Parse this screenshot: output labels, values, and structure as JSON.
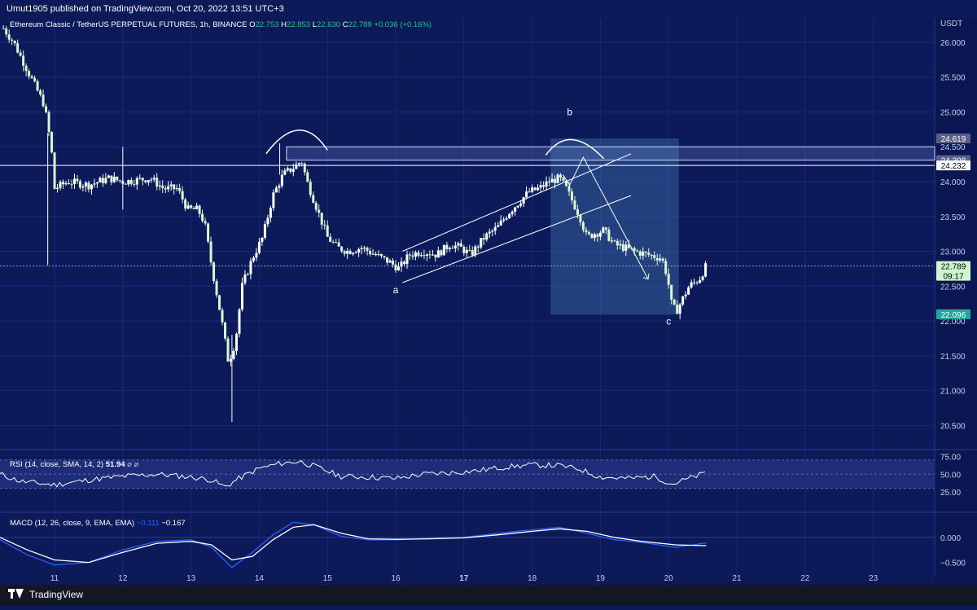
{
  "header": {
    "published": "Umut1905 published on TradingView.com, Oct 20, 2022 13:51 UTC+3",
    "symbol_line": "Ethereum Classic / TetherUS PERPETUAL FUTURES, 1h, BINANCE",
    "ohlc": {
      "o_label": "O",
      "o": "22.753",
      "h_label": "H",
      "h": "22.853",
      "l_label": "L",
      "l": "22.630",
      "c_label": "C",
      "c": "22.789",
      "change": "+0.036 (+0.16%)"
    }
  },
  "colors": {
    "background": "#0c1a5a",
    "candle_up": "#ffffff",
    "candle_down": "#d9f7d0",
    "drawing": "#ffffff",
    "current_price_badge": "#ccf5d0",
    "low_badge": "#26a69a",
    "rsi_band": "#1e2c7a",
    "macd_line": "#2962ff",
    "signal_line": "#ffffff"
  },
  "chart_data": [
    {
      "type": "candlestick",
      "title": "Ethereum Classic / TetherUS PERPETUAL FUTURES, 1h, BINANCE",
      "currency_label": "USDT",
      "x_ticks": [
        "11",
        "12",
        "13",
        "14",
        "15",
        "16",
        "17",
        "18",
        "19",
        "20",
        "21",
        "22",
        "23"
      ],
      "x_day_range": [
        10.2,
        23.9
      ],
      "ylim": [
        20.2,
        26.35
      ],
      "y_ticks": [
        "26.000",
        "25.500",
        "25.000",
        "24.500",
        "24.000",
        "23.500",
        "23.000",
        "22.500",
        "22.000",
        "21.500",
        "21.000",
        "20.500"
      ],
      "price_badges": [
        {
          "label": "24.619",
          "value": 24.619,
          "style": "grey"
        },
        {
          "label": "24.308",
          "value": 24.308,
          "style": "grey"
        },
        {
          "label": "24.232",
          "value": 24.232,
          "style": "white"
        },
        {
          "label": "22.789",
          "value": 22.789,
          "style": "current",
          "countdown": "09:17"
        },
        {
          "label": "22.096",
          "value": 22.096,
          "style": "low"
        }
      ],
      "wave_labels": [
        {
          "text": "a",
          "day": 16.0,
          "price": 22.4
        },
        {
          "text": "b",
          "day": 18.55,
          "price": 24.95
        },
        {
          "text": "c",
          "day": 20.0,
          "price": 21.95
        }
      ],
      "trend_points": [
        [
          10.25,
          26.2
        ],
        [
          10.4,
          26.0
        ],
        [
          10.55,
          25.7
        ],
        [
          10.7,
          25.4
        ],
        [
          10.85,
          25.1
        ],
        [
          10.95,
          24.5
        ],
        [
          11.0,
          23.9
        ],
        [
          11.2,
          24.0
        ],
        [
          11.5,
          23.95
        ],
        [
          11.8,
          24.05
        ],
        [
          12.0,
          24.0
        ],
        [
          12.2,
          24.02
        ],
        [
          12.4,
          24.05
        ],
        [
          12.6,
          23.9
        ],
        [
          12.8,
          23.9
        ],
        [
          12.95,
          23.6
        ],
        [
          13.1,
          23.6
        ],
        [
          13.2,
          23.4
        ],
        [
          13.3,
          22.8
        ],
        [
          13.45,
          22.0
        ],
        [
          13.55,
          21.4
        ],
        [
          13.65,
          21.7
        ],
        [
          13.75,
          22.5
        ],
        [
          13.9,
          22.9
        ],
        [
          14.05,
          23.2
        ],
        [
          14.2,
          23.8
        ],
        [
          14.35,
          24.1
        ],
        [
          14.5,
          24.2
        ],
        [
          14.62,
          24.3
        ],
        [
          14.7,
          24.0
        ],
        [
          14.85,
          23.6
        ],
        [
          15.0,
          23.2
        ],
        [
          15.15,
          23.05
        ],
        [
          15.3,
          23.0
        ],
        [
          15.5,
          23.05
        ],
        [
          15.7,
          22.95
        ],
        [
          15.9,
          22.85
        ],
        [
          16.05,
          22.75
        ],
        [
          16.2,
          22.95
        ],
        [
          16.4,
          23.0
        ],
        [
          16.6,
          22.95
        ],
        [
          16.8,
          23.1
        ],
        [
          16.95,
          23.05
        ],
        [
          17.1,
          22.95
        ],
        [
          17.3,
          23.2
        ],
        [
          17.5,
          23.35
        ],
        [
          17.65,
          23.55
        ],
        [
          17.8,
          23.7
        ],
        [
          17.95,
          23.85
        ],
        [
          18.1,
          23.9
        ],
        [
          18.25,
          24.0
        ],
        [
          18.4,
          24.05
        ],
        [
          18.5,
          23.9
        ],
        [
          18.6,
          23.7
        ],
        [
          18.7,
          23.5
        ],
        [
          18.8,
          23.2
        ],
        [
          18.9,
          23.25
        ],
        [
          19.05,
          23.3
        ],
        [
          19.2,
          23.1
        ],
        [
          19.35,
          23.05
        ],
        [
          19.5,
          23.0
        ],
        [
          19.7,
          22.95
        ],
        [
          19.9,
          22.9
        ],
        [
          19.98,
          22.65
        ],
        [
          20.05,
          22.2
        ],
        [
          20.12,
          22.15
        ],
        [
          20.3,
          22.5
        ],
        [
          20.45,
          22.6
        ],
        [
          20.55,
          22.789
        ]
      ]
    },
    {
      "type": "line",
      "title": "RSI",
      "legend": "RSI (14, close, SMA, 14, 2)",
      "value_label": "51.94",
      "ylim": [
        0,
        80
      ],
      "y_ticks": [
        "75.00",
        "50.00",
        "25.00"
      ],
      "band": [
        30,
        70
      ],
      "values": [
        [
          10.2,
          50
        ],
        [
          10.5,
          40
        ],
        [
          11.0,
          35
        ],
        [
          11.5,
          42
        ],
        [
          12.0,
          47
        ],
        [
          12.5,
          50
        ],
        [
          13.0,
          46
        ],
        [
          13.3,
          42
        ],
        [
          13.5,
          32
        ],
        [
          13.7,
          44
        ],
        [
          14.0,
          58
        ],
        [
          14.3,
          65
        ],
        [
          14.6,
          68
        ],
        [
          14.9,
          58
        ],
        [
          15.2,
          47
        ],
        [
          15.6,
          46
        ],
        [
          16.0,
          44
        ],
        [
          16.4,
          50
        ],
        [
          16.8,
          52
        ],
        [
          17.2,
          55
        ],
        [
          17.6,
          60
        ],
        [
          18.0,
          63
        ],
        [
          18.4,
          62
        ],
        [
          18.7,
          57
        ],
        [
          19.0,
          46
        ],
        [
          19.4,
          44
        ],
        [
          19.8,
          47
        ],
        [
          20.05,
          36
        ],
        [
          20.3,
          44
        ],
        [
          20.55,
          51.94
        ]
      ]
    },
    {
      "type": "line",
      "title": "MACD",
      "legend": "MACD (12, 26, close, 9, EMA, EMA)",
      "macd_label": "−0.111",
      "signal_label": "−0.167",
      "ylim": [
        -0.75,
        0.45
      ],
      "y_ticks": [
        "0.000",
        "−0.500"
      ],
      "series": [
        {
          "name": "MACD",
          "values": [
            [
              10.2,
              -0.05
            ],
            [
              10.6,
              -0.35
            ],
            [
              11.0,
              -0.55
            ],
            [
              11.5,
              -0.5
            ],
            [
              12.0,
              -0.25
            ],
            [
              12.5,
              -0.08
            ],
            [
              13.0,
              -0.05
            ],
            [
              13.3,
              -0.2
            ],
            [
              13.6,
              -0.6
            ],
            [
              13.9,
              -0.3
            ],
            [
              14.2,
              0.05
            ],
            [
              14.5,
              0.3
            ],
            [
              14.8,
              0.25
            ],
            [
              15.2,
              0.02
            ],
            [
              15.6,
              -0.05
            ],
            [
              16.0,
              -0.05
            ],
            [
              16.5,
              -0.02
            ],
            [
              17.0,
              0.0
            ],
            [
              17.5,
              0.08
            ],
            [
              18.0,
              0.15
            ],
            [
              18.4,
              0.2
            ],
            [
              18.8,
              0.08
            ],
            [
              19.2,
              -0.05
            ],
            [
              19.6,
              -0.1
            ],
            [
              20.1,
              -0.2
            ],
            [
              20.55,
              -0.111
            ]
          ]
        },
        {
          "name": "Signal",
          "values": [
            [
              10.2,
              0.0
            ],
            [
              10.6,
              -0.25
            ],
            [
              11.0,
              -0.45
            ],
            [
              11.5,
              -0.5
            ],
            [
              12.0,
              -0.3
            ],
            [
              12.5,
              -0.12
            ],
            [
              13.0,
              -0.08
            ],
            [
              13.3,
              -0.15
            ],
            [
              13.6,
              -0.45
            ],
            [
              13.9,
              -0.38
            ],
            [
              14.2,
              -0.05
            ],
            [
              14.5,
              0.2
            ],
            [
              14.8,
              0.25
            ],
            [
              15.2,
              0.08
            ],
            [
              15.6,
              -0.03
            ],
            [
              16.0,
              -0.04
            ],
            [
              16.5,
              -0.03
            ],
            [
              17.0,
              -0.01
            ],
            [
              17.5,
              0.05
            ],
            [
              18.0,
              0.12
            ],
            [
              18.4,
              0.17
            ],
            [
              18.8,
              0.12
            ],
            [
              19.2,
              0.0
            ],
            [
              19.6,
              -0.08
            ],
            [
              20.1,
              -0.15
            ],
            [
              20.55,
              -0.167
            ]
          ]
        }
      ]
    }
  ],
  "footer": {
    "brand": "TradingView"
  }
}
